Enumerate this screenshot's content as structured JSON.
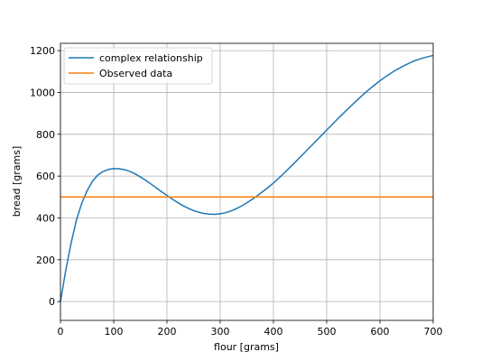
{
  "chart_data": {
    "type": "line",
    "xlabel": "flour [grams]",
    "ylabel": "bread [grams]",
    "xlim": [
      0,
      700
    ],
    "ylim": [
      -90,
      1235
    ],
    "xticks": [
      0,
      100,
      200,
      300,
      400,
      500,
      600,
      700
    ],
    "yticks": [
      0,
      200,
      400,
      600,
      800,
      1000,
      1200
    ],
    "grid": true,
    "legend_position": "top-left",
    "series": [
      {
        "name": "complex relationship",
        "color": "#1f77b4",
        "x": [
          0,
          10,
          20,
          30,
          40,
          50,
          60,
          70,
          80,
          90,
          100,
          110,
          120,
          130,
          140,
          150,
          160,
          170,
          180,
          190,
          200,
          210,
          220,
          230,
          240,
          250,
          260,
          270,
          280,
          290,
          300,
          310,
          320,
          330,
          340,
          350,
          360,
          370,
          380,
          390,
          400,
          410,
          420,
          430,
          440,
          450,
          460,
          470,
          480,
          490,
          500,
          510,
          520,
          530,
          540,
          550,
          560,
          570,
          580,
          590,
          600,
          610,
          620,
          630,
          640,
          650,
          660,
          670,
          680,
          690,
          700
        ],
        "y": [
          0,
          150,
          280,
          390,
          470,
          530,
          575,
          605,
          622,
          632,
          636,
          635,
          631,
          623,
          611,
          596,
          580,
          562,
          544,
          525,
          508,
          490,
          474,
          459,
          446,
          435,
          427,
          421,
          418,
          417,
          420,
          425,
          433,
          444,
          457,
          472,
          489,
          507,
          526,
          546,
          567,
          590,
          614,
          639,
          664,
          690,
          716,
          742,
          768,
          794,
          820,
          846,
          872,
          897,
          922,
          946,
          970,
          993,
          1015,
          1036,
          1056,
          1074,
          1091,
          1107,
          1121,
          1134,
          1146,
          1156,
          1164,
          1171,
          1177
        ]
      },
      {
        "name": "Observed data",
        "color": "#ff7f0e",
        "x": [
          0,
          700
        ],
        "y": [
          500,
          500
        ]
      }
    ]
  }
}
